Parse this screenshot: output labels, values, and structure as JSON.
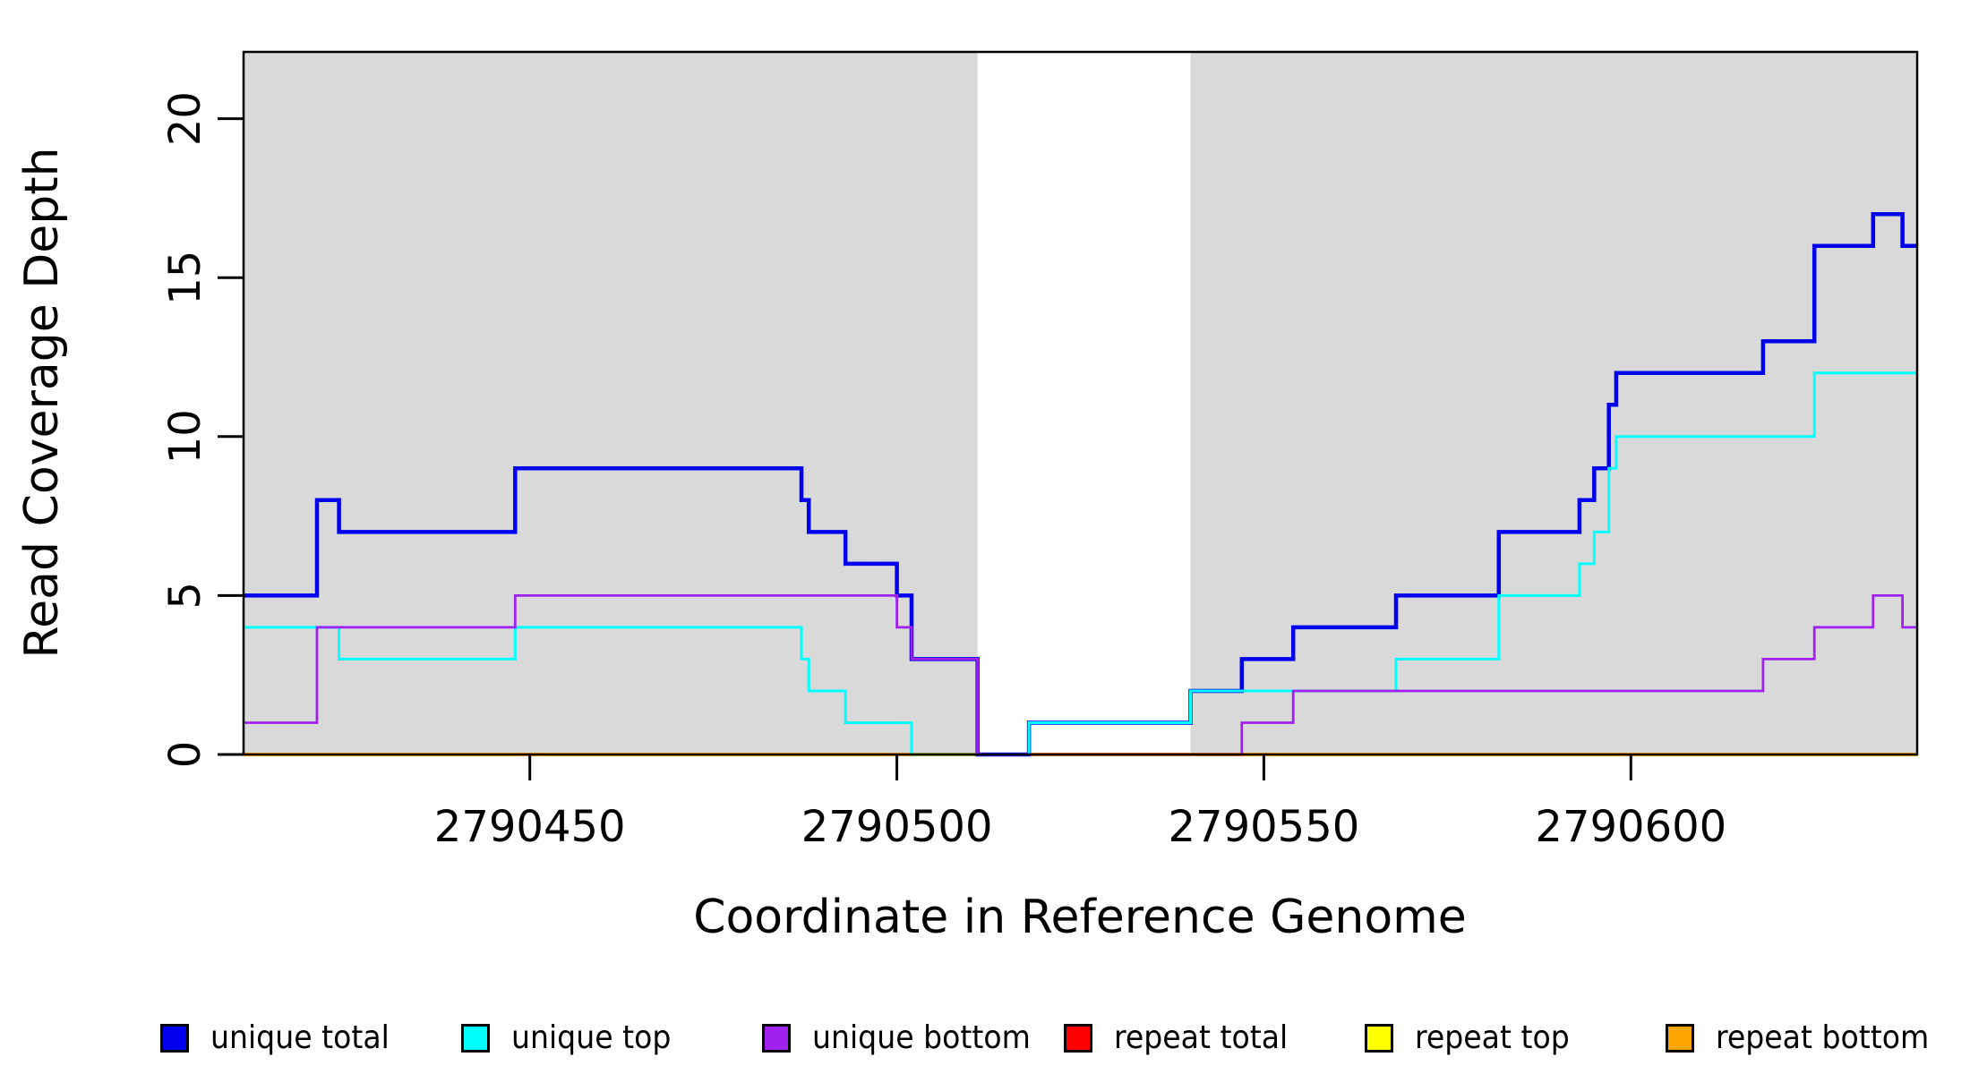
{
  "figure": {
    "background_color": "#FFFFFF",
    "plot_shade_color": "#D9D9D9",
    "box_color": "#000000"
  },
  "legend": {
    "items": [
      {
        "label": "unique total",
        "color": "#0000EE"
      },
      {
        "label": "unique top",
        "color": "#00FFFF"
      },
      {
        "label": "unique bottom",
        "color": "#A020F0"
      },
      {
        "label": "repeat total",
        "color": "#FF0000"
      },
      {
        "label": "repeat top",
        "color": "#FFFF00"
      },
      {
        "label": "repeat bottom",
        "color": "#FFA500"
      }
    ]
  },
  "chart_data": {
    "type": "line",
    "step": "post",
    "title": "",
    "xlabel": "Coordinate in Reference Genome",
    "ylabel": "Read Coverage Depth",
    "xlim": [
      2790411,
      2790639
    ],
    "ylim": [
      0,
      22.1
    ],
    "x_ticks": {
      "values": [
        2790450,
        2790500,
        2790550,
        2790600
      ],
      "labels": [
        "2790450",
        "2790500",
        "2790550",
        "2790600"
      ]
    },
    "y_ticks": {
      "values": [
        0,
        5,
        10,
        15,
        20
      ],
      "labels": [
        "0",
        "5",
        "10",
        "15",
        "20"
      ]
    },
    "grid": false,
    "legend_position": "bottom",
    "shaded_regions": {
      "color": "#D9D9D9",
      "x_ranges": [
        [
          2790411,
          2790511
        ],
        [
          2790540,
          2790639
        ]
      ]
    },
    "draw_order": [
      "repeat top",
      "repeat total",
      "repeat bottom",
      "unique total",
      "unique top",
      "unique bottom"
    ],
    "series": [
      {
        "name": "unique total",
        "color": "#0000EE",
        "line_width": 4.5,
        "points": [
          [
            2790411,
            5
          ],
          [
            2790421,
            8
          ],
          [
            2790424,
            7
          ],
          [
            2790448,
            9
          ],
          [
            2790487,
            8
          ],
          [
            2790488,
            7
          ],
          [
            2790493,
            6
          ],
          [
            2790500,
            5
          ],
          [
            2790502,
            3
          ],
          [
            2790511,
            0
          ],
          [
            2790518,
            1
          ],
          [
            2790540,
            2
          ],
          [
            2790547,
            3
          ],
          [
            2790554,
            4
          ],
          [
            2790568,
            5
          ],
          [
            2790582,
            7
          ],
          [
            2790593,
            8
          ],
          [
            2790595,
            9
          ],
          [
            2790597,
            11
          ],
          [
            2790598,
            12
          ],
          [
            2790618,
            13
          ],
          [
            2790625,
            16
          ],
          [
            2790633,
            17
          ],
          [
            2790637,
            16
          ]
        ]
      },
      {
        "name": "unique top",
        "color": "#00FFFF",
        "line_width": 3,
        "points": [
          [
            2790411,
            4
          ],
          [
            2790424,
            3
          ],
          [
            2790448,
            4
          ],
          [
            2790487,
            3
          ],
          [
            2790488,
            2
          ],
          [
            2790493,
            1
          ],
          [
            2790502,
            0
          ],
          [
            2790518,
            1
          ],
          [
            2790540,
            2
          ],
          [
            2790568,
            3
          ],
          [
            2790582,
            5
          ],
          [
            2790593,
            6
          ],
          [
            2790595,
            7
          ],
          [
            2790597,
            9
          ],
          [
            2790598,
            10
          ],
          [
            2790625,
            12
          ]
        ]
      },
      {
        "name": "unique bottom",
        "color": "#A020F0",
        "line_width": 2.8,
        "points": [
          [
            2790411,
            1
          ],
          [
            2790421,
            4
          ],
          [
            2790448,
            5
          ],
          [
            2790500,
            4
          ],
          [
            2790502,
            3
          ],
          [
            2790511,
            0
          ],
          [
            2790547,
            1
          ],
          [
            2790554,
            2
          ],
          [
            2790618,
            3
          ],
          [
            2790625,
            4
          ],
          [
            2790633,
            5
          ],
          [
            2790637,
            4
          ]
        ]
      },
      {
        "name": "repeat total",
        "color": "#FF0000",
        "line_width": 2.5,
        "points": [
          [
            2790411,
            0
          ]
        ]
      },
      {
        "name": "repeat top",
        "color": "#FFFF00",
        "line_width": 2.5,
        "points": [
          [
            2790411,
            0
          ]
        ]
      },
      {
        "name": "repeat bottom",
        "color": "#FFA500",
        "line_width": 4,
        "points": [
          [
            2790411,
            0
          ]
        ]
      }
    ]
  }
}
